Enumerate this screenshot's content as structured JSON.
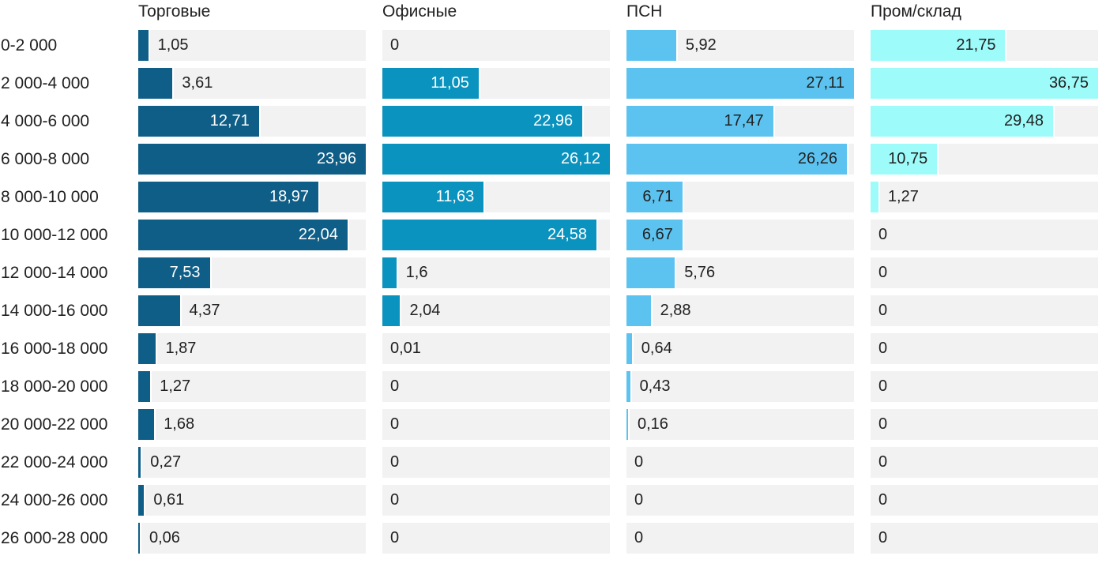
{
  "page": {
    "background": "#ffffff",
    "text_color": "#212121"
  },
  "chart_data": {
    "type": "bar",
    "orientation": "horizontal",
    "layout": "small-multiples, one column per series, each column scaled to its own max value",
    "grid": "off",
    "track_color": "#f2f2f2",
    "value_label_decimal_separator": ",",
    "categories": [
      "0-2 000",
      "2 000-4 000",
      "4 000-6 000",
      "6 000-8 000",
      "8 000-10 000",
      "10 000-12 000",
      "12 000-14 000",
      "14 000-16 000",
      "16 000-18 000",
      "18 000-20 000",
      "20 000-22 000",
      "22 000-24 000",
      "24 000-26 000",
      "26 000-28 000"
    ],
    "series": [
      {
        "name": "Торговые",
        "color": "#0f5e87",
        "inside_label_color": "#ffffff",
        "values": [
          1.05,
          3.61,
          12.71,
          23.96,
          18.97,
          22.04,
          7.53,
          4.37,
          1.87,
          1.27,
          1.68,
          0.27,
          0.61,
          0.06
        ],
        "labels": [
          "1,05",
          "3,61",
          "12,71",
          "23,96",
          "18,97",
          "22,04",
          "7,53",
          "4,37",
          "1,87",
          "1,27",
          "1,68",
          "0,27",
          "0,61",
          "0,06"
        ]
      },
      {
        "name": "Офисные",
        "color": "#0a93be",
        "inside_label_color": "#ffffff",
        "values": [
          0,
          11.05,
          22.96,
          26.12,
          11.63,
          24.58,
          1.6,
          2.04,
          0.01,
          0,
          0,
          0,
          0,
          0
        ],
        "labels": [
          "0",
          "11,05",
          "22,96",
          "26,12",
          "11,63",
          "24,58",
          "1,6",
          "2,04",
          "0,01",
          "0",
          "0",
          "0",
          "0",
          "0"
        ]
      },
      {
        "name": "ПСН",
        "color": "#5cc3f0",
        "inside_label_color": "#212121",
        "values": [
          5.92,
          27.11,
          17.47,
          26.26,
          6.71,
          6.67,
          5.76,
          2.88,
          0.64,
          0.43,
          0.16,
          0,
          0,
          0
        ],
        "labels": [
          "5,92",
          "27,11",
          "17,47",
          "26,26",
          "6,71",
          "6,67",
          "5,76",
          "2,88",
          "0,64",
          "0,43",
          "0,16",
          "0",
          "0",
          "0"
        ]
      },
      {
        "name": "Пром/склад",
        "color": "#9dfbfa",
        "inside_label_color": "#212121",
        "values": [
          21.75,
          36.75,
          29.48,
          10.75,
          1.27,
          0,
          0,
          0,
          0,
          0,
          0,
          0,
          0,
          0
        ],
        "labels": [
          "21,75",
          "36,75",
          "29,48",
          "10,75",
          "1,27",
          "0",
          "0",
          "0",
          "0",
          "0",
          "0",
          "0",
          "0",
          "0"
        ]
      }
    ]
  }
}
